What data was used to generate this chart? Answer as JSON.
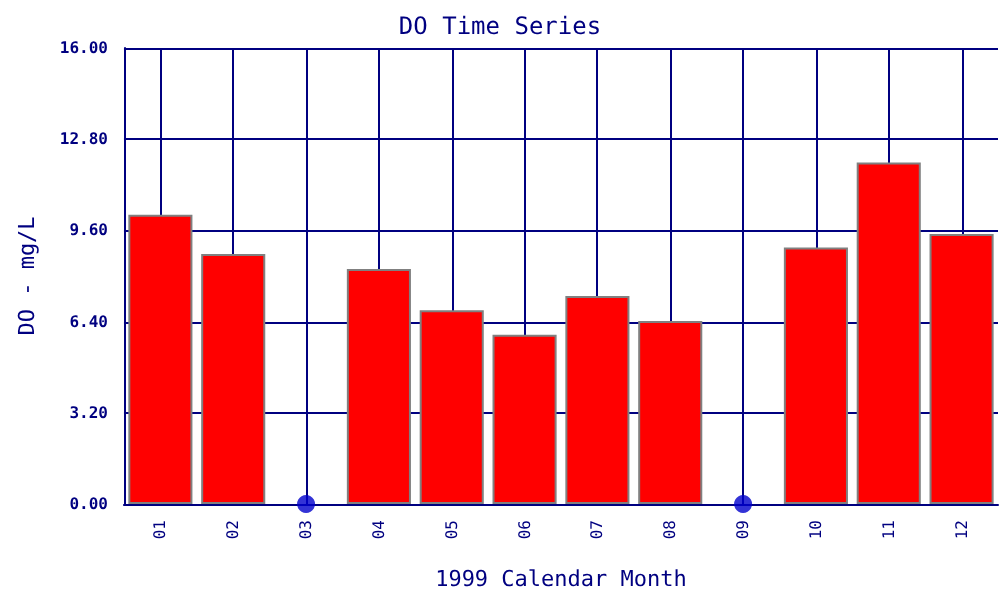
{
  "chart_data": {
    "type": "bar",
    "title": "DO Time Series",
    "xlabel": "1999 Calendar Month",
    "ylabel": "DO - mg/L",
    "categories": [
      "01",
      "02",
      "03",
      "04",
      "05",
      "06",
      "07",
      "08",
      "09",
      "10",
      "11",
      "12"
    ],
    "series": [
      {
        "color": "#ff0000",
        "values": [
          10.15,
          8.77,
          null,
          8.25,
          6.8,
          5.94,
          7.3,
          6.42,
          null,
          9.0,
          11.98,
          9.47
        ]
      },
      {
        "type": "scatter",
        "color": "#0000cc",
        "x": [
          "03",
          "09"
        ],
        "values": [
          0,
          0
        ]
      }
    ],
    "ylim": [
      0,
      16
    ],
    "yticks": [
      {
        "value": 0,
        "label": "0.00"
      },
      {
        "value": 3.2,
        "label": "3.20"
      },
      {
        "value": 6.4,
        "label": "6.40"
      },
      {
        "value": 9.6,
        "label": "9.60"
      },
      {
        "value": 12.8,
        "label": "12.80"
      },
      {
        "value": 16,
        "label": "16.00"
      }
    ],
    "grid": true,
    "marker": "circle"
  }
}
